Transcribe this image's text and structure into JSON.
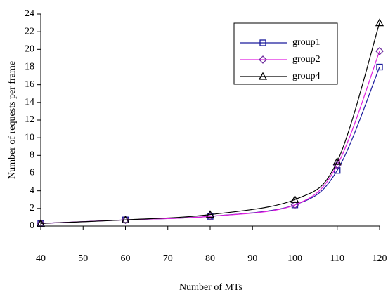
{
  "chart_data": {
    "type": "line",
    "x_label": "Number of MTs",
    "y_label": "Number of requests per frame",
    "x": [
      40,
      60,
      80,
      100,
      110,
      120
    ],
    "series": [
      {
        "name": "group1",
        "color": "#1a1a9c",
        "marker": "square",
        "values": [
          0.3,
          0.7,
          1.1,
          2.4,
          6.3,
          18
        ]
      },
      {
        "name": "group2",
        "color": "#e020e0",
        "marker": "diamond",
        "values": [
          0.3,
          0.7,
          1.1,
          2.4,
          6.9,
          19.8
        ]
      },
      {
        "name": "group4",
        "color": "#000000",
        "marker": "triangle",
        "values": [
          0.3,
          0.7,
          1.3,
          3.0,
          7.3,
          23
        ]
      }
    ],
    "xlim": [
      40,
      120
    ],
    "xticks": [
      40,
      50,
      60,
      70,
      80,
      90,
      100,
      110,
      120
    ],
    "ylim": [
      0,
      24
    ],
    "yticks": [
      0,
      2,
      4,
      6,
      8,
      10,
      12,
      14,
      16,
      18,
      20,
      22,
      24
    ],
    "legend": "upper-right"
  }
}
